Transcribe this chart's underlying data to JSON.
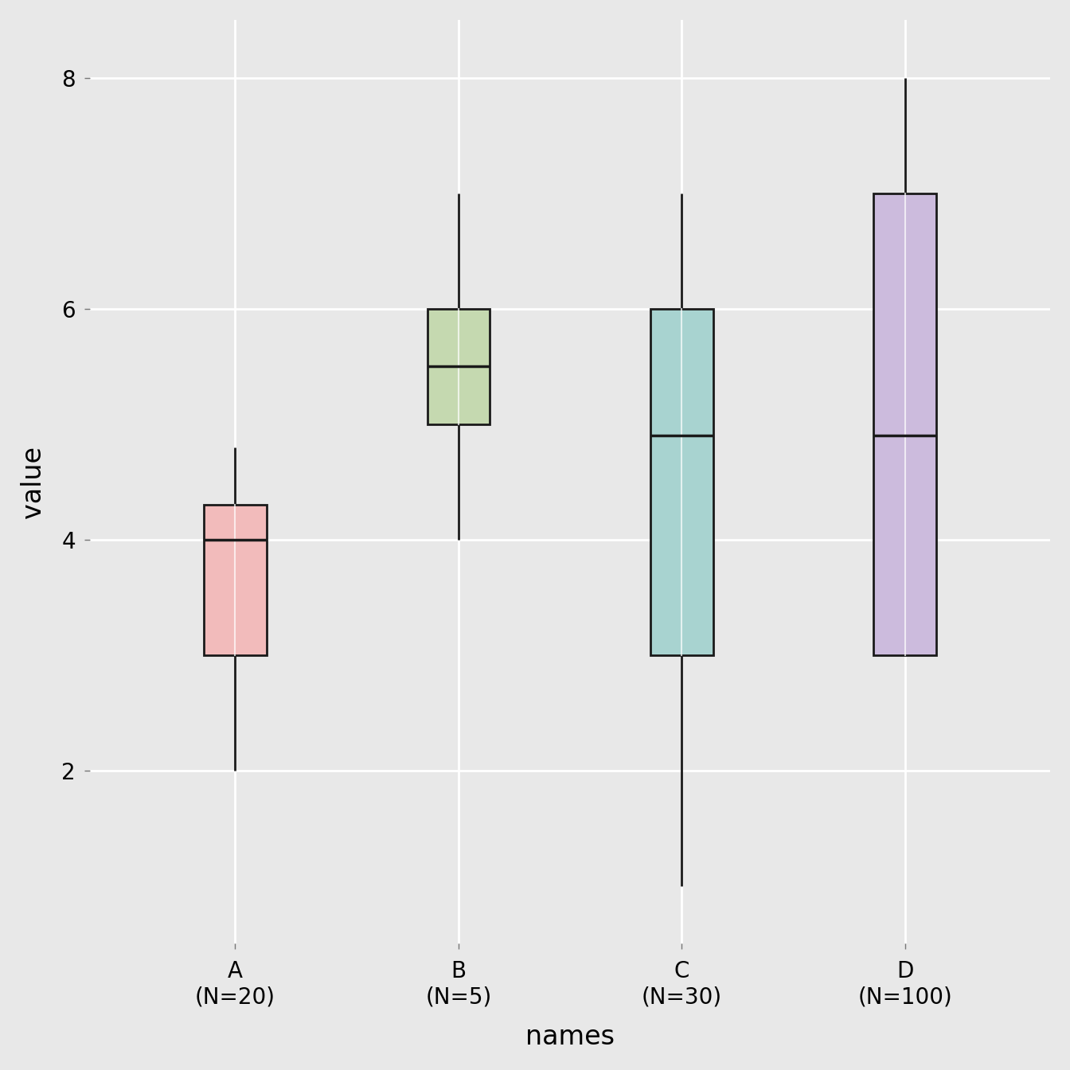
{
  "categories": [
    "A\n(N=20)",
    "B\n(N=5)",
    "C\n(N=30)",
    "D\n(N=100)"
  ],
  "xlabel": "names",
  "ylabel": "value",
  "ylim": [
    0.5,
    8.5
  ],
  "yticks": [
    2,
    4,
    6,
    8
  ],
  "background_color": "#E8E8E8",
  "grid_color": "#FFFFFF",
  "boxes": [
    {
      "label": "A\n(N=20)",
      "q1": 3.0,
      "median": 4.0,
      "q3": 4.3,
      "whisker_low": 2.0,
      "whisker_high": 4.8,
      "color": "#F2BBBB",
      "edge_color": "#1A1A1A"
    },
    {
      "label": "B\n(N=5)",
      "q1": 5.0,
      "median": 5.5,
      "q3": 6.0,
      "whisker_low": 4.0,
      "whisker_high": 7.0,
      "color": "#C5D9B0",
      "edge_color": "#1A1A1A"
    },
    {
      "label": "C\n(N=30)",
      "q1": 3.0,
      "median": 4.9,
      "q3": 6.0,
      "whisker_low": 1.0,
      "whisker_high": 7.0,
      "color": "#A8D3D0",
      "edge_color": "#1A1A1A"
    },
    {
      "label": "D\n(N=100)",
      "q1": 3.0,
      "median": 4.9,
      "q3": 7.0,
      "whisker_low": 3.0,
      "whisker_high": 8.0,
      "color": "#CCBBDD",
      "edge_color": "#1A1A1A"
    }
  ],
  "box_width": 0.28,
  "linewidth": 2.0,
  "median_linewidth": 2.5,
  "label_fontsize": 24,
  "tick_fontsize": 20,
  "figsize": [
    13.44,
    13.44
  ],
  "dpi": 100
}
